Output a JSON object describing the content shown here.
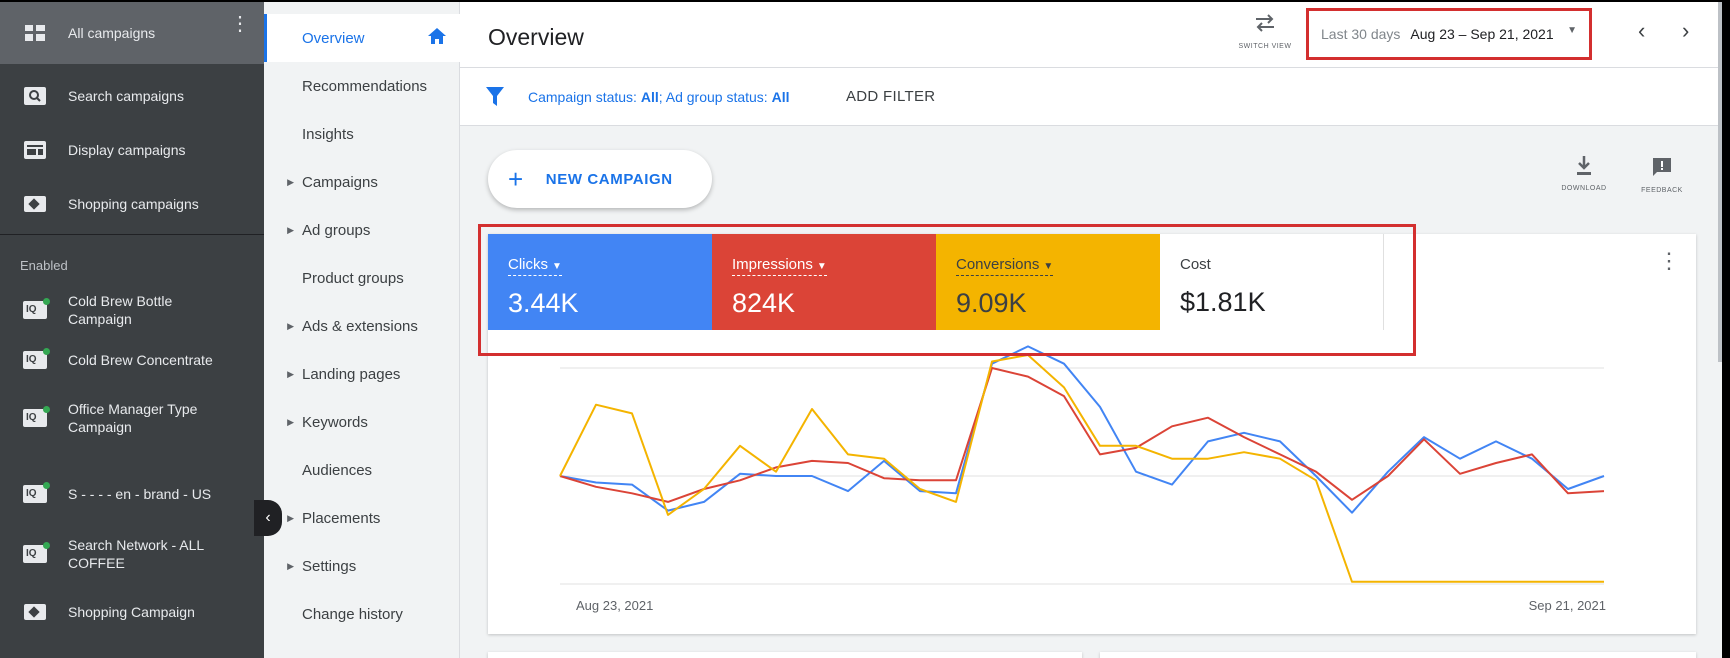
{
  "sidebar": {
    "all_campaigns": "All campaigns",
    "types": [
      {
        "label": "Search campaigns",
        "icon": "search-campaign-icon"
      },
      {
        "label": "Display campaigns",
        "icon": "display-campaign-icon"
      },
      {
        "label": "Shopping campaigns",
        "icon": "shopping-campaign-icon"
      }
    ],
    "section_label": "Enabled",
    "campaigns": [
      {
        "label_line1": "Cold Brew Bottle",
        "label_line2": "Campaign"
      },
      {
        "label_line1": "Cold Brew Concentrate",
        "label_line2": ""
      },
      {
        "label_line1": "Office Manager Type",
        "label_line2": "Campaign"
      },
      {
        "label_line1": "S - - - - en - brand - US",
        "label_line2": ""
      },
      {
        "label_line1": "Search Network - ALL",
        "label_line2": "COFFEE"
      },
      {
        "label_line1": "Shopping Campaign",
        "label_line2": ""
      }
    ]
  },
  "nav": {
    "items": [
      {
        "label": "Overview",
        "expandable": false
      },
      {
        "label": "Recommendations",
        "expandable": false
      },
      {
        "label": "Insights",
        "expandable": false
      },
      {
        "label": "Campaigns",
        "expandable": true
      },
      {
        "label": "Ad groups",
        "expandable": true
      },
      {
        "label": "Product groups",
        "expandable": false
      },
      {
        "label": "Ads & extensions",
        "expandable": true
      },
      {
        "label": "Landing pages",
        "expandable": true
      },
      {
        "label": "Keywords",
        "expandable": true
      },
      {
        "label": "Audiences",
        "expandable": false
      },
      {
        "label": "Placements",
        "expandable": true
      },
      {
        "label": "Settings",
        "expandable": true
      },
      {
        "label": "Change history",
        "expandable": false
      }
    ]
  },
  "header": {
    "title": "Overview",
    "switch_view": "SWITCH VIEW",
    "date_range_label": "Last 30 days",
    "date_range_value": "Aug 23 – Sep 21, 2021"
  },
  "filter": {
    "campaign_status_label": "Campaign status: ",
    "campaign_status_value": "All",
    "ad_group_status_label": "; Ad group status: ",
    "ad_group_status_value": "All",
    "add_filter": "ADD FILTER"
  },
  "toolbar": {
    "new_campaign": "NEW CAMPAIGN",
    "download": "DOWNLOAD",
    "feedback": "FEEDBACK"
  },
  "metrics": {
    "clicks": {
      "label": "Clicks",
      "value": "3.44K"
    },
    "impressions": {
      "label": "Impressions",
      "value": "824K"
    },
    "conversions": {
      "label": "Conversions",
      "value": "9.09K"
    },
    "cost": {
      "label": "Cost",
      "value": "$1.81K"
    }
  },
  "colors": {
    "clicks": "#4285f4",
    "impressions": "#db4437",
    "conversions": "#f4b400",
    "highlight": "#d32f2f"
  },
  "chart_data": {
    "type": "line",
    "x_start": "Aug 23, 2021",
    "x_end": "Sep 21, 2021",
    "ylim": [
      0,
      100
    ],
    "grid": true,
    "series": [
      {
        "name": "Clicks",
        "color": "#4285f4",
        "values": [
          50,
          47,
          46,
          34,
          38,
          51,
          50,
          50,
          43,
          57,
          43,
          42,
          102,
          110,
          102,
          82,
          52,
          46,
          66,
          70,
          66,
          50,
          33,
          52,
          68,
          58,
          66,
          58,
          44,
          50
        ]
      },
      {
        "name": "Impressions",
        "color": "#db4437",
        "values": [
          50,
          45,
          42,
          38,
          44,
          48,
          54,
          57,
          56,
          49,
          48,
          48,
          100,
          96,
          87,
          60,
          63,
          73,
          77,
          68,
          60,
          52,
          39,
          50,
          67,
          51,
          56,
          60,
          42,
          43
        ]
      },
      {
        "name": "Conversions",
        "color": "#f4b400",
        "values": [
          50,
          83,
          79,
          32,
          44,
          64,
          52,
          81,
          60,
          58,
          44,
          38,
          103,
          106,
          91,
          64,
          64,
          58,
          58,
          61,
          58,
          48,
          1,
          1,
          1,
          1,
          1,
          1,
          1,
          1
        ]
      }
    ]
  }
}
